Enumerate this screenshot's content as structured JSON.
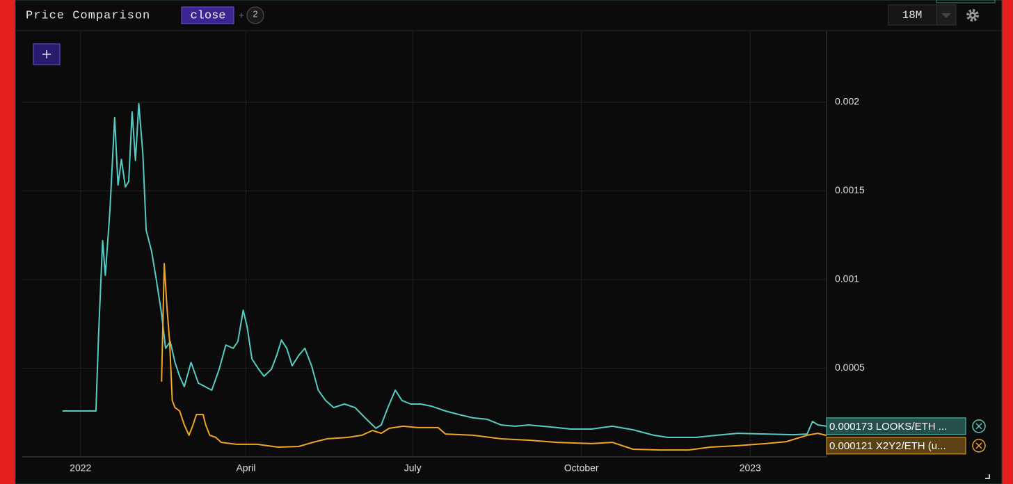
{
  "header": {
    "title": "Price Comparison",
    "field": "close",
    "count": "2",
    "range": "18M"
  },
  "chart_data": {
    "type": "line",
    "xlim": [
      2021.913,
      2023.114
    ],
    "xticks": [
      {
        "value": 2022,
        "label": "2022"
      },
      {
        "value": 2022.247,
        "label": "April"
      },
      {
        "value": 2022.496,
        "label": "July"
      },
      {
        "value": 2022.748,
        "label": "October"
      },
      {
        "value": 2023,
        "label": "2023"
      }
    ],
    "ylim": [
      0,
      0.0024
    ],
    "yticks": [
      0.0005,
      0.001,
      0.0015,
      0.002
    ],
    "grid": true,
    "series": [
      {
        "name": "LOOKS/ETH ...",
        "color": "#56cdc4",
        "x": [
          2021.973,
          2022.023,
          2022.027,
          2022.033,
          2022.037,
          2022.044,
          2022.051,
          2022.056,
          2022.061,
          2022.067,
          2022.072,
          2022.077,
          2022.082,
          2022.087,
          2022.093,
          2022.098,
          2022.106,
          2022.113,
          2022.121,
          2022.127,
          2022.134,
          2022.141,
          2022.148,
          2022.155,
          2022.165,
          2022.176,
          2022.186,
          2022.196,
          2022.207,
          2022.217,
          2022.228,
          2022.235,
          2022.243,
          2022.249,
          2022.256,
          2022.266,
          2022.274,
          2022.285,
          2022.293,
          2022.3,
          2022.308,
          2022.316,
          2022.326,
          2022.335,
          2022.345,
          2022.355,
          2022.366,
          2022.378,
          2022.394,
          2022.41,
          2022.425,
          2022.441,
          2022.449,
          2022.459,
          2022.47,
          2022.48,
          2022.493,
          2022.508,
          2022.524,
          2022.545,
          2022.565,
          2022.586,
          2022.607,
          2022.628,
          2022.649,
          2022.669,
          2022.701,
          2022.732,
          2022.763,
          2022.794,
          2022.825,
          2022.856,
          2022.877,
          2022.919,
          2022.95,
          2022.981,
          2023.023,
          2023.064,
          2023.085,
          2023.093,
          2023.101,
          2023.114
        ],
        "values": [
          0.000259,
          0.000259,
          0.00069,
          0.00122,
          0.001024,
          0.001396,
          0.001914,
          0.001533,
          0.001678,
          0.001522,
          0.001553,
          0.001945,
          0.001671,
          0.001992,
          0.00171,
          0.001278,
          0.001161,
          0.001004,
          0.000808,
          0.000612,
          0.000651,
          0.000533,
          0.000455,
          0.000396,
          0.000533,
          0.000416,
          0.000396,
          0.000376,
          0.000494,
          0.000631,
          0.000612,
          0.000651,
          0.000827,
          0.000729,
          0.000553,
          0.000494,
          0.000455,
          0.000494,
          0.000573,
          0.000659,
          0.000612,
          0.000514,
          0.000573,
          0.000612,
          0.000514,
          0.000376,
          0.000318,
          0.000278,
          0.000298,
          0.000278,
          0.00022,
          0.000161,
          0.00018,
          0.000278,
          0.000376,
          0.000318,
          0.000298,
          0.000298,
          0.000286,
          0.000259,
          0.000239,
          0.00022,
          0.000212,
          0.00018,
          0.000173,
          0.00018,
          0.000169,
          0.000157,
          0.000157,
          0.000173,
          0.000153,
          0.000122,
          0.00011,
          0.00011,
          0.000122,
          0.000133,
          0.000129,
          0.000125,
          0.000129,
          0.0002,
          0.00018,
          0.000173
        ]
      },
      {
        "name": "X2Y2/ETH (u...",
        "color": "#f0a526",
        "x": [
          2022.121,
          2022.125,
          2022.129,
          2022.133,
          2022.137,
          2022.141,
          2022.148,
          2022.155,
          2022.162,
          2022.168,
          2022.173,
          2022.183,
          2022.187,
          2022.193,
          2022.202,
          2022.21,
          2022.233,
          2022.264,
          2022.295,
          2022.326,
          2022.347,
          2022.368,
          2022.399,
          2022.42,
          2022.436,
          2022.449,
          2022.461,
          2022.482,
          2022.503,
          2022.534,
          2022.545,
          2022.586,
          2022.628,
          2022.669,
          2022.711,
          2022.763,
          2022.794,
          2022.825,
          2022.867,
          2022.908,
          2022.94,
          2022.981,
          2023.023,
          2023.054,
          2023.085,
          2023.101,
          2023.114
        ],
        "values": [
          0.000424,
          0.00109,
          0.000847,
          0.000651,
          0.000318,
          0.000278,
          0.000259,
          0.00018,
          0.000122,
          0.00018,
          0.000239,
          0.000239,
          0.00018,
          0.000122,
          0.00011,
          8.2e-05,
          7.1e-05,
          7.1e-05,
          5.5e-05,
          5.9e-05,
          8.2e-05,
          0.000102,
          0.00011,
          0.000122,
          0.000149,
          0.000133,
          0.000161,
          0.000173,
          0.000165,
          0.000165,
          0.000129,
          0.000122,
          0.000102,
          9.4e-05,
          8.2e-05,
          7.5e-05,
          8.2e-05,
          4.3e-05,
          3.9e-05,
          3.9e-05,
          5.5e-05,
          6.3e-05,
          7.5e-05,
          8.6e-05,
          0.000122,
          0.000133,
          0.000121
        ]
      }
    ]
  }
}
